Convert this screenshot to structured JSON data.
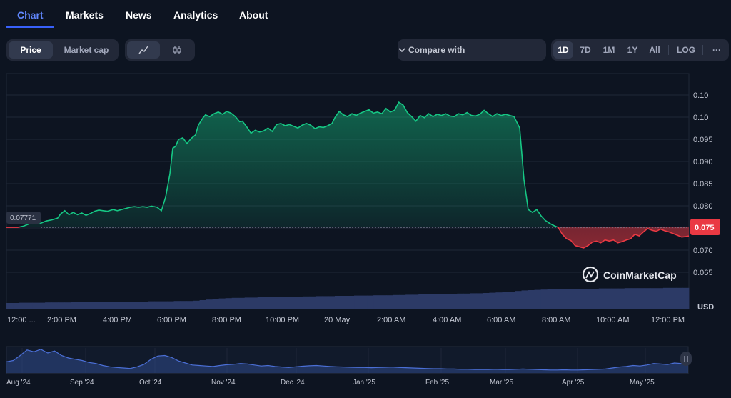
{
  "tabs": [
    {
      "label": "Chart",
      "active": true
    },
    {
      "label": "Markets",
      "active": false
    },
    {
      "label": "News",
      "active": false
    },
    {
      "label": "Analytics",
      "active": false
    },
    {
      "label": "About",
      "active": false
    }
  ],
  "toolbar": {
    "price_label": "Price",
    "marketcap_label": "Market cap",
    "line_icon": "line-chart-icon",
    "candle_icon": "candlestick-icon",
    "compare_label": "Compare with",
    "ranges": [
      "1D",
      "7D",
      "1M",
      "1Y",
      "All"
    ],
    "active_range": "1D",
    "log_label": "LOG",
    "more_label": "···"
  },
  "chart_data": {
    "type": "area",
    "y_ticks": [
      "0.10",
      "0.10",
      "0.095",
      "0.090",
      "0.085",
      "0.080",
      "0.075",
      "0.070",
      "0.065"
    ],
    "y_range": [
      0.0635,
      0.1045
    ],
    "baseline": 0.07771,
    "baseline_label": "0.07771",
    "current_label": "0.075",
    "x_labels": [
      "12:00 ...",
      "2:00 PM",
      "4:00 PM",
      "6:00 PM",
      "8:00 PM",
      "10:00 PM",
      "20 May",
      "2:00 AM",
      "4:00 AM",
      "6:00 AM",
      "8:00 AM",
      "10:00 AM",
      "12:00 PM"
    ],
    "usd_label": "USD",
    "watermark": "CoinMarketCap",
    "series": [
      [
        0,
        0.0777
      ],
      [
        0.8,
        0.0777
      ],
      [
        1.2,
        0.0779
      ],
      [
        1.6,
        0.0783
      ],
      [
        2.0,
        0.0786
      ],
      [
        2.4,
        0.0784
      ],
      [
        2.8,
        0.0788
      ],
      [
        3.2,
        0.079
      ],
      [
        3.6,
        0.0793
      ],
      [
        3.8,
        0.08
      ],
      [
        4.1,
        0.0806
      ],
      [
        4.4,
        0.0799
      ],
      [
        4.7,
        0.0803
      ],
      [
        5.0,
        0.0799
      ],
      [
        5.3,
        0.0802
      ],
      [
        5.6,
        0.0798
      ],
      [
        5.9,
        0.0801
      ],
      [
        6.2,
        0.0805
      ],
      [
        6.5,
        0.0807
      ],
      [
        6.8,
        0.0806
      ],
      [
        7.1,
        0.0805
      ],
      [
        7.5,
        0.0808
      ],
      [
        7.8,
        0.0806
      ],
      [
        8.1,
        0.0808
      ],
      [
        8.4,
        0.081
      ],
      [
        8.7,
        0.0812
      ],
      [
        9.0,
        0.0813
      ],
      [
        9.3,
        0.0812
      ],
      [
        9.6,
        0.0813
      ],
      [
        9.9,
        0.0812
      ],
      [
        10.2,
        0.0814
      ],
      [
        10.6,
        0.0812
      ],
      [
        10.9,
        0.0806
      ],
      [
        11.2,
        0.083
      ],
      [
        11.5,
        0.087
      ],
      [
        11.7,
        0.0915
      ],
      [
        11.9,
        0.0918
      ],
      [
        12.1,
        0.093
      ],
      [
        12.4,
        0.0933
      ],
      [
        12.7,
        0.0923
      ],
      [
        13.0,
        0.0932
      ],
      [
        13.3,
        0.0938
      ],
      [
        13.5,
        0.0955
      ],
      [
        13.8,
        0.0967
      ],
      [
        14.0,
        0.0973
      ],
      [
        14.3,
        0.097
      ],
      [
        14.6,
        0.0975
      ],
      [
        14.9,
        0.0978
      ],
      [
        15.2,
        0.0974
      ],
      [
        15.5,
        0.0979
      ],
      [
        15.8,
        0.0976
      ],
      [
        16.1,
        0.097
      ],
      [
        16.4,
        0.0961
      ],
      [
        16.6,
        0.0962
      ],
      [
        16.9,
        0.0952
      ],
      [
        17.2,
        0.0941
      ],
      [
        17.5,
        0.0946
      ],
      [
        17.8,
        0.0943
      ],
      [
        18.1,
        0.0945
      ],
      [
        18.4,
        0.095
      ],
      [
        18.7,
        0.0944
      ],
      [
        19.0,
        0.0956
      ],
      [
        19.3,
        0.0958
      ],
      [
        19.6,
        0.0954
      ],
      [
        19.9,
        0.0956
      ],
      [
        20.2,
        0.0953
      ],
      [
        20.5,
        0.095
      ],
      [
        20.8,
        0.0955
      ],
      [
        21.1,
        0.0958
      ],
      [
        21.4,
        0.0955
      ],
      [
        21.7,
        0.0949
      ],
      [
        22.0,
        0.0952
      ],
      [
        22.3,
        0.0951
      ],
      [
        22.6,
        0.0954
      ],
      [
        22.9,
        0.0958
      ],
      [
        23.1,
        0.0968
      ],
      [
        23.4,
        0.0979
      ],
      [
        23.7,
        0.0973
      ],
      [
        24.0,
        0.097
      ],
      [
        24.3,
        0.0975
      ],
      [
        24.6,
        0.0972
      ],
      [
        24.9,
        0.0976
      ],
      [
        25.2,
        0.0979
      ],
      [
        25.5,
        0.0982
      ],
      [
        25.8,
        0.0976
      ],
      [
        26.1,
        0.0978
      ],
      [
        26.4,
        0.0975
      ],
      [
        26.7,
        0.0984
      ],
      [
        27.0,
        0.0978
      ],
      [
        27.3,
        0.0981
      ],
      [
        27.6,
        0.0995
      ],
      [
        27.9,
        0.099
      ],
      [
        28.2,
        0.0977
      ],
      [
        28.5,
        0.097
      ],
      [
        28.8,
        0.0962
      ],
      [
        29.1,
        0.0972
      ],
      [
        29.4,
        0.0968
      ],
      [
        29.7,
        0.0975
      ],
      [
        30.0,
        0.097
      ],
      [
        30.3,
        0.0974
      ],
      [
        30.6,
        0.0972
      ],
      [
        30.9,
        0.0975
      ],
      [
        31.2,
        0.0971
      ],
      [
        31.5,
        0.097
      ],
      [
        31.8,
        0.0975
      ],
      [
        32.1,
        0.0973
      ],
      [
        32.4,
        0.0977
      ],
      [
        32.7,
        0.0972
      ],
      [
        33.0,
        0.0971
      ],
      [
        33.3,
        0.0974
      ],
      [
        33.6,
        0.0981
      ],
      [
        33.9,
        0.0975
      ],
      [
        34.2,
        0.097
      ],
      [
        34.5,
        0.0975
      ],
      [
        34.8,
        0.0972
      ],
      [
        35.1,
        0.0974
      ],
      [
        35.4,
        0.0972
      ],
      [
        35.7,
        0.097
      ],
      [
        36.1,
        0.095
      ],
      [
        36.4,
        0.086
      ],
      [
        36.7,
        0.0808
      ],
      [
        37.0,
        0.0803
      ],
      [
        37.3,
        0.0808
      ],
      [
        37.6,
        0.0797
      ],
      [
        37.9,
        0.0789
      ],
      [
        38.2,
        0.0784
      ],
      [
        38.5,
        0.078
      ],
      [
        38.8,
        0.0777
      ],
      [
        39.1,
        0.0765
      ],
      [
        39.4,
        0.0757
      ],
      [
        39.7,
        0.0754
      ],
      [
        40.0,
        0.0745
      ],
      [
        40.3,
        0.0743
      ],
      [
        40.6,
        0.0741
      ],
      [
        40.9,
        0.0745
      ],
      [
        41.2,
        0.0751
      ],
      [
        41.5,
        0.0753
      ],
      [
        41.8,
        0.075
      ],
      [
        42.1,
        0.0755
      ],
      [
        42.4,
        0.0753
      ],
      [
        42.7,
        0.0755
      ],
      [
        43.0,
        0.075
      ],
      [
        43.3,
        0.0752
      ],
      [
        43.6,
        0.0755
      ],
      [
        43.9,
        0.0757
      ],
      [
        44.2,
        0.0765
      ],
      [
        44.5,
        0.0762
      ],
      [
        44.8,
        0.0769
      ],
      [
        45.1,
        0.0775
      ],
      [
        45.4,
        0.0772
      ],
      [
        45.7,
        0.077
      ],
      [
        46.0,
        0.0774
      ],
      [
        46.3,
        0.0771
      ],
      [
        46.6,
        0.0769
      ],
      [
        46.9,
        0.0766
      ],
      [
        47.2,
        0.0763
      ],
      [
        47.5,
        0.076
      ],
      [
        47.8,
        0.0761
      ],
      [
        48.0,
        0.0762
      ]
    ],
    "volume": [
      0.2,
      0.2,
      0.21,
      0.21,
      0.21,
      0.21,
      0.22,
      0.22,
      0.22,
      0.22,
      0.23,
      0.23,
      0.23,
      0.23,
      0.24,
      0.24,
      0.24,
      0.24,
      0.25,
      0.25,
      0.25,
      0.25,
      0.26,
      0.26,
      0.26,
      0.26,
      0.27,
      0.27,
      0.27,
      0.28,
      0.3,
      0.32,
      0.34,
      0.36,
      0.37,
      0.38,
      0.38,
      0.39,
      0.39,
      0.4,
      0.4,
      0.41,
      0.41,
      0.41,
      0.42,
      0.42,
      0.43,
      0.43,
      0.44,
      0.44,
      0.44,
      0.45,
      0.45,
      0.45,
      0.46,
      0.46,
      0.46,
      0.47,
      0.47,
      0.47,
      0.48,
      0.48,
      0.49,
      0.49,
      0.5,
      0.5,
      0.51,
      0.51,
      0.52,
      0.52,
      0.53,
      0.53,
      0.54,
      0.54,
      0.55,
      0.56,
      0.57,
      0.58,
      0.6,
      0.62,
      0.64,
      0.65,
      0.66,
      0.67,
      0.68,
      0.68,
      0.69,
      0.69,
      0.7,
      0.7,
      0.7,
      0.7,
      0.71,
      0.71,
      0.71,
      0.71,
      0.72,
      0.72,
      0.72,
      0.72,
      0.72,
      0.72,
      0.73,
      0.73,
      0.73,
      0.73
    ]
  },
  "navigator": {
    "labels": [
      "Aug '24",
      "Sep '24",
      "Oct '24",
      "Nov '24",
      "Dec '24",
      "Jan '25",
      "Feb '25",
      "Mar '25",
      "Apr '25",
      "May '25"
    ],
    "series": [
      0.45,
      0.5,
      0.7,
      0.92,
      0.85,
      0.95,
      0.8,
      0.88,
      0.7,
      0.6,
      0.55,
      0.5,
      0.42,
      0.38,
      0.3,
      0.25,
      0.22,
      0.2,
      0.18,
      0.25,
      0.35,
      0.55,
      0.68,
      0.7,
      0.62,
      0.48,
      0.4,
      0.32,
      0.3,
      0.28,
      0.26,
      0.3,
      0.33,
      0.35,
      0.38,
      0.36,
      0.32,
      0.28,
      0.3,
      0.26,
      0.24,
      0.22,
      0.25,
      0.27,
      0.29,
      0.3,
      0.28,
      0.26,
      0.25,
      0.24,
      0.23,
      0.22,
      0.22,
      0.21,
      0.22,
      0.23,
      0.24,
      0.22,
      0.21,
      0.2,
      0.19,
      0.18,
      0.17,
      0.17,
      0.16,
      0.16,
      0.15,
      0.15,
      0.14,
      0.14,
      0.14,
      0.15,
      0.14,
      0.14,
      0.15,
      0.16,
      0.15,
      0.14,
      0.13,
      0.12,
      0.12,
      0.13,
      0.12,
      0.12,
      0.13,
      0.14,
      0.15,
      0.16,
      0.2,
      0.24,
      0.26,
      0.3,
      0.28,
      0.32,
      0.38,
      0.36,
      0.34,
      0.4,
      0.38,
      0.35
    ]
  }
}
